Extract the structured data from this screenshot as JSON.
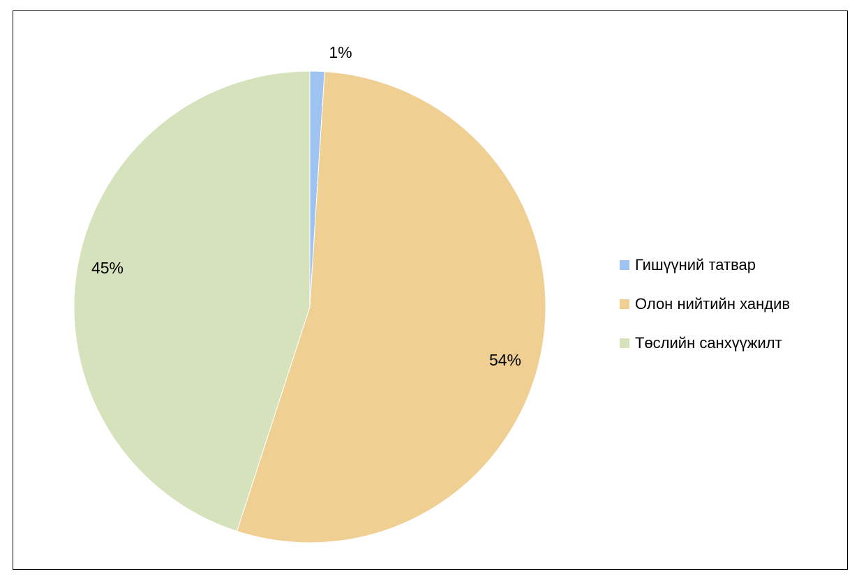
{
  "chart_data": {
    "type": "pie",
    "title": "",
    "slices": [
      {
        "label": "Гишүүний татвар",
        "value": 1,
        "display": "1%",
        "color": "#9fc3f0"
      },
      {
        "label": "Олон нийтийн хандив",
        "value": 54,
        "display": "54%",
        "color": "#f0cf93"
      },
      {
        "label": "Төслийн санхүүжилт",
        "value": 45,
        "display": "45%",
        "color": "#d5e2bb"
      }
    ],
    "legend_position": "right"
  }
}
